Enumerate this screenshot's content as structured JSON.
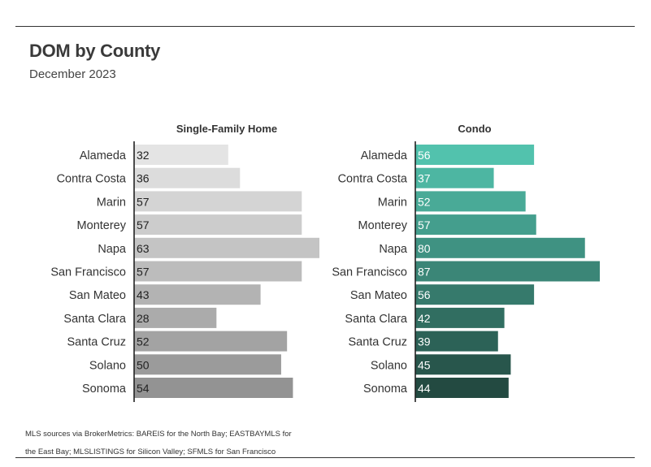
{
  "title": "DOM by County",
  "subtitle": "December 2023",
  "footnote": "MLS sources via BrokerMetrics: BAREIS for the North Bay; EASTBAYMLS for the East Bay; MLSLISTINGS for Silicon Valley; SFMLS for San Francisco",
  "colors": {
    "sfh_light": "#e4e4e4",
    "sfh_dark": "#939393",
    "condo_light": "#52c2ad",
    "condo_dark": "#234a41"
  },
  "chart_data": [
    {
      "type": "bar",
      "orientation": "horizontal",
      "title": "Single-Family Home",
      "categories": [
        "Alameda",
        "Contra Costa",
        "Marin",
        "Monterey",
        "Napa",
        "San Francisco",
        "San Mateo",
        "Santa Clara",
        "Santa Cruz",
        "Solano",
        "Sonoma"
      ],
      "values": [
        32,
        36,
        57,
        57,
        63,
        57,
        43,
        28,
        52,
        50,
        54
      ],
      "xlim": [
        0,
        63
      ],
      "grid": false,
      "data_labels": true
    },
    {
      "type": "bar",
      "orientation": "horizontal",
      "title": "Condo",
      "categories": [
        "Alameda",
        "Contra Costa",
        "Marin",
        "Monterey",
        "Napa",
        "San Francisco",
        "San Mateo",
        "Santa Clara",
        "Santa Cruz",
        "Solano",
        "Sonoma"
      ],
      "values": [
        56,
        37,
        52,
        57,
        80,
        87,
        56,
        42,
        39,
        45,
        44
      ],
      "xlim": [
        0,
        87
      ],
      "grid": false,
      "data_labels": true
    }
  ]
}
